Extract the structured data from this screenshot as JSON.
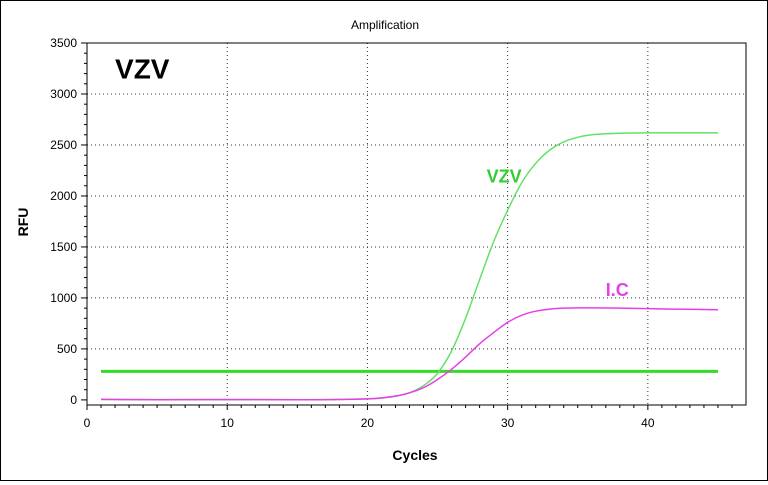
{
  "chart_data": {
    "type": "line",
    "title": "Amplification",
    "xlabel": "Cycles",
    "ylabel": "RFU",
    "xlim": [
      0,
      47
    ],
    "ylim": [
      -50,
      3500
    ],
    "x_ticks": [
      0,
      10,
      20,
      30,
      40
    ],
    "y_ticks": [
      0,
      500,
      1000,
      1500,
      2000,
      2500,
      3000,
      3500
    ],
    "grid": true,
    "annotations": [
      {
        "text": "VZV",
        "color": "#000000",
        "x": 2,
        "y": 3150
      },
      {
        "text": "VZV",
        "color": "#33cc33",
        "x": 28.5,
        "y": 2130
      },
      {
        "text": "I.C",
        "color": "#e83ee8",
        "x": 37,
        "y": 1020
      }
    ],
    "threshold": {
      "y": 280,
      "x": [
        1,
        45
      ],
      "color": "#33dd22"
    },
    "series": [
      {
        "color": "#66e066",
        "x": [
          1,
          5,
          10,
          15,
          18,
          20,
          21,
          22,
          23,
          24,
          25,
          26,
          27,
          28,
          29,
          30,
          31,
          32,
          33,
          34,
          35,
          36,
          37,
          38,
          40,
          42,
          45
        ],
        "y": [
          5,
          3,
          4,
          2,
          5,
          10,
          18,
          35,
          70,
          140,
          260,
          480,
          800,
          1180,
          1550,
          1860,
          2130,
          2320,
          2450,
          2530,
          2575,
          2600,
          2610,
          2615,
          2618,
          2618,
          2618
        ]
      },
      {
        "color": "#e83ee8",
        "x": [
          1,
          5,
          10,
          15,
          18,
          20,
          21,
          22,
          23,
          24,
          25,
          26,
          27,
          28,
          29,
          30,
          31,
          32,
          33,
          34,
          35,
          36,
          38,
          40,
          42,
          45
        ],
        "y": [
          5,
          2,
          3,
          1,
          4,
          10,
          20,
          38,
          70,
          120,
          200,
          300,
          420,
          550,
          660,
          760,
          830,
          870,
          890,
          900,
          902,
          902,
          900,
          895,
          890,
          885
        ]
      }
    ]
  }
}
